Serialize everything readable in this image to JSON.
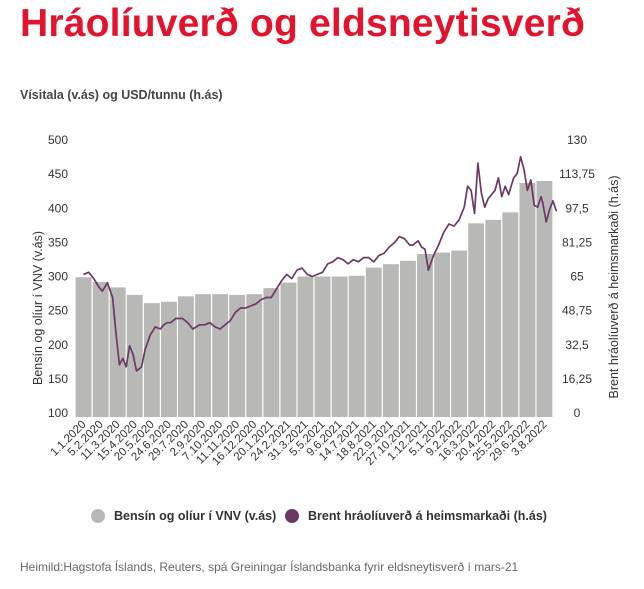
{
  "title": "Hráolíuverð og eldsneytisverð",
  "subtitle": "Vísitala (v.ás) og USD/tunnu (h.ás)",
  "source": "Heimild:Hagstofa Íslands, Reuters, spá Greiningar Íslandsbanka fyrir eldsneytisverð í mars-21",
  "colors": {
    "title": "#e3132d",
    "bars": "#b8b8b6",
    "line": "#6b3a63"
  },
  "chart_data": {
    "type": "bar+line",
    "ylabel_left": "Bensín og olíur í VNV (v.ás)",
    "ylabel_right": "Brent hráolíuverð á heimsmarkaði (h.ás)",
    "ylim_left": [
      100,
      500
    ],
    "ylim_right": [
      0,
      130
    ],
    "yticks_left": [
      "500",
      "450",
      "400",
      "350",
      "300",
      "250",
      "200",
      "150",
      "100"
    ],
    "yticks_right": [
      "130",
      "113,75",
      "97,5",
      "81,25",
      "65",
      "48,75",
      "32,5",
      "16,25",
      "0"
    ],
    "x_tick_labels": [
      "1.1.2020",
      "5.2.2020",
      "11.3.2020",
      "15.4.2020",
      "20.5.2020",
      "24.6.2020",
      "29.7.2020",
      "2.9.2020",
      "7.10.2020",
      "11.11.2020",
      "16.12.2020",
      "20.1.2021",
      "24.2.2021",
      "31.3.2021",
      "5.5.2021",
      "9.6.2021",
      "14.7.2021",
      "18.8.2021",
      "22.9.2021",
      "27.10.2021",
      "1.12.2021",
      "5.1.2022",
      "9.2.2022",
      "16.3.2022",
      "20.4.2022",
      "25.5.2022",
      "29.6.2022",
      "3.8.2022"
    ],
    "series": [
      {
        "name": "Bensín og olíur í VNV (v.ás)",
        "type": "bar",
        "axis": "left",
        "values": [
          299,
          292,
          284,
          273,
          261,
          263,
          271,
          274,
          274,
          273,
          274,
          283,
          291,
          300,
          300,
          300,
          301,
          313,
          318,
          323,
          333,
          335,
          338,
          378,
          383,
          394,
          437,
          440
        ]
      },
      {
        "name": "Brent hráolíuverð á heimsmarkaði (h.ás)",
        "type": "line",
        "axis": "right",
        "x": [
          0,
          0.3,
          0.6,
          0.9,
          1.1,
          1.4,
          1.7,
          1.9,
          2.1,
          2.3,
          2.5,
          2.7,
          2.9,
          3.1,
          3.4,
          3.6,
          3.9,
          4.2,
          4.5,
          4.7,
          4.9,
          5.1,
          5.4,
          5.8,
          6.1,
          6.4,
          6.8,
          7.1,
          7.4,
          7.7,
          8.0,
          8.3,
          8.6,
          8.9,
          9.2,
          9.5,
          9.8,
          10.1,
          10.4,
          10.7,
          11.0,
          11.3,
          11.6,
          11.9,
          12.2,
          12.5,
          12.8,
          13.1,
          13.4,
          13.7,
          14.0,
          14.3,
          14.6,
          14.9,
          15.2,
          15.5,
          15.8,
          16.1,
          16.4,
          16.7,
          17.0,
          17.3,
          17.6,
          17.9,
          18.2,
          18.5,
          18.8,
          19.1,
          19.3,
          19.6,
          19.8,
          20.0,
          20.2,
          20.5,
          20.8,
          21.1,
          21.4,
          21.7,
          22.0,
          22.3,
          22.5,
          22.7,
          22.9,
          23.1,
          23.3,
          23.5,
          23.7,
          23.9,
          24.1,
          24.3,
          24.5,
          24.7,
          24.9,
          25.2,
          25.4,
          25.6,
          25.8,
          26.0,
          26.2,
          26.4,
          26.6,
          26.8,
          26.9,
          27.1,
          27.3,
          27.5,
          27.7
        ],
        "values": [
          66,
          67,
          64,
          60,
          58,
          62,
          55,
          38,
          23,
          26,
          22,
          32,
          28,
          20,
          22,
          30,
          37,
          41,
          40,
          42,
          43,
          43,
          45,
          45,
          43,
          40,
          42,
          42,
          43,
          41,
          40,
          42,
          44,
          48,
          50,
          50,
          51,
          52,
          54,
          55,
          55,
          59,
          63,
          66,
          64,
          68,
          69,
          66,
          65,
          66,
          67,
          71,
          72,
          74,
          73,
          71,
          73,
          72,
          74,
          74,
          72,
          75,
          76,
          79,
          81,
          84,
          83,
          80,
          80,
          82,
          79,
          78,
          68,
          75,
          80,
          86,
          90,
          89,
          92,
          98,
          108,
          106,
          95,
          119,
          105,
          98,
          102,
          104,
          106,
          112,
          103,
          108,
          104,
          112,
          114,
          122,
          116,
          106,
          111,
          99,
          98,
          103,
          100,
          91,
          97,
          101,
          96
        ]
      }
    ],
    "legend": [
      "Bensín og olíur í VNV (v.ás)",
      "Brent hráolíuverð á heimsmarkaði (h.ás)"
    ],
    "legend_position": "bottom",
    "grid": false
  }
}
